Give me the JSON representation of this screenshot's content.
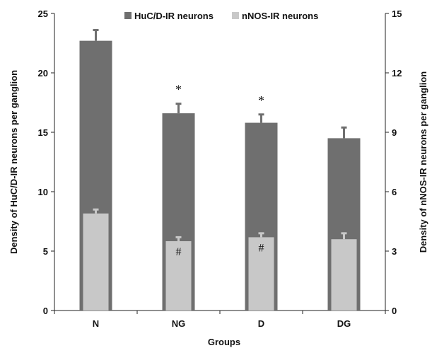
{
  "chart_data": {
    "type": "bar",
    "title": "",
    "xlabel": "Groups",
    "ylabel_left": "Density of HuC/D-IR neurons per ganglion",
    "ylabel_right": "Density of nNOS-IR neurons per ganglion",
    "categories": [
      "N",
      "NG",
      "D",
      "DG"
    ],
    "ylim_left": [
      0,
      25
    ],
    "yticks_left": [
      "0",
      "5",
      "10",
      "15",
      "20",
      "25"
    ],
    "ylim_right": [
      0,
      15
    ],
    "yticks_right": [
      "0",
      "3",
      "6",
      "9",
      "12",
      "15"
    ],
    "grid": false,
    "legend_position": "top",
    "series": [
      {
        "name": "HuC/D-IR neurons",
        "axis": "left",
        "color": "#6f6f6f",
        "values": [
          22.7,
          16.6,
          15.8,
          14.5
        ],
        "errors": [
          0.9,
          0.8,
          0.7,
          0.9
        ],
        "annotations": [
          "",
          "*",
          "*",
          ""
        ]
      },
      {
        "name": "nNOS-IR  neurons",
        "axis": "right",
        "color": "#c8c8c8",
        "values": [
          4.9,
          3.5,
          3.7,
          3.6
        ],
        "errors": [
          0.2,
          0.2,
          0.2,
          0.3
        ],
        "annotations": [
          "",
          "#",
          "#",
          ""
        ]
      }
    ]
  }
}
